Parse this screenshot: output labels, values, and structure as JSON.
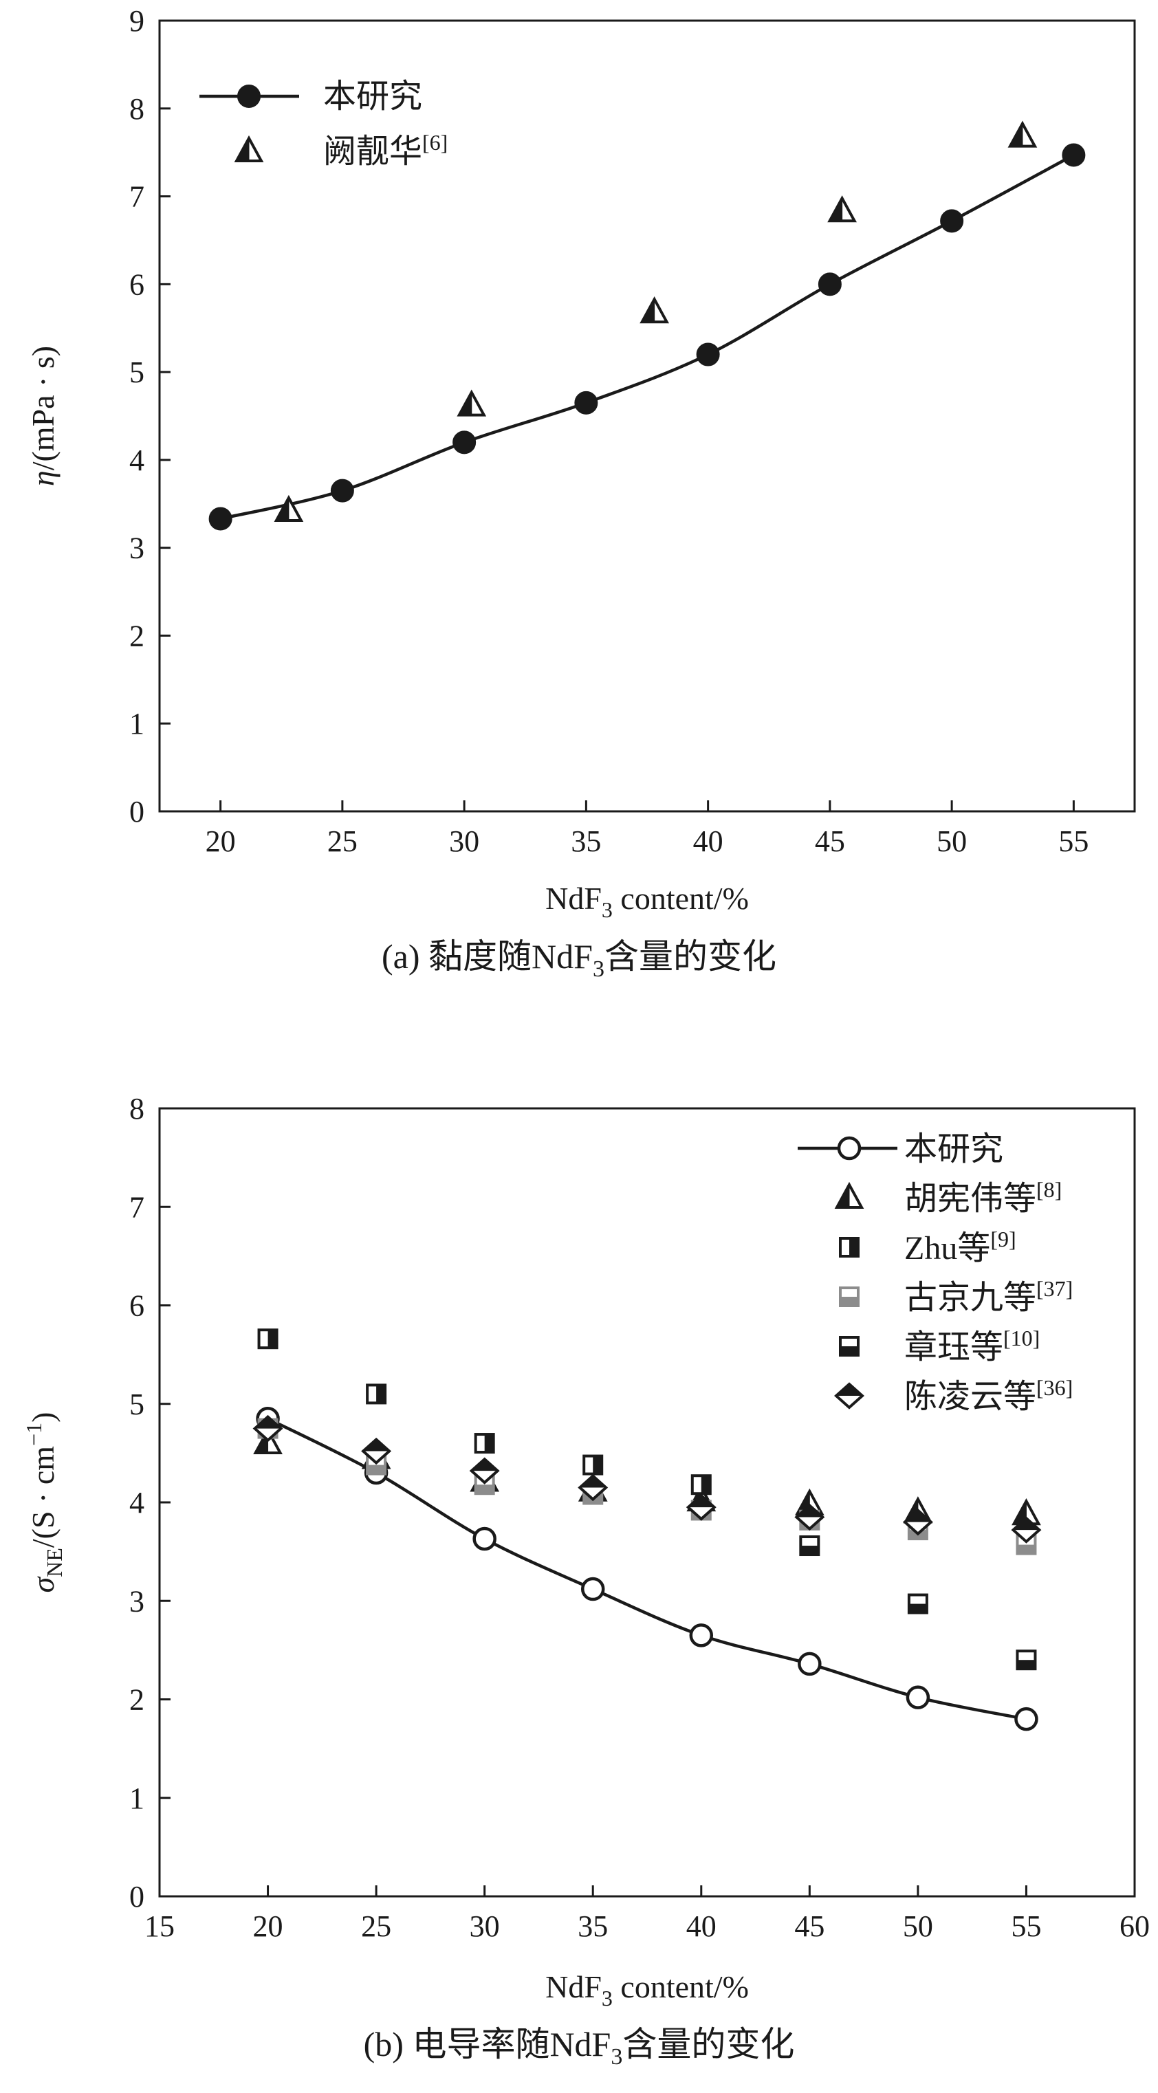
{
  "chart_data": [
    {
      "type": "line",
      "panel": "a",
      "caption": "(a) 黏度随NdF₃含量的变化",
      "xlabel": "NdF₃ content/%",
      "ylabel": "η/(mPa · s)",
      "xlim": [
        17.5,
        57.5
      ],
      "ylim": [
        0,
        9
      ],
      "xticks": [
        20,
        25,
        30,
        35,
        40,
        45,
        50,
        55
      ],
      "yticks": [
        0,
        1,
        2,
        3,
        4,
        5,
        6,
        7,
        8,
        9
      ],
      "legend_position": "top-left",
      "series": [
        {
          "name": "本研究",
          "marker": "filled-circle",
          "line": true,
          "color": "#1a1a1a",
          "points": [
            [
              20,
              3.33
            ],
            [
              25,
              3.65
            ],
            [
              30,
              4.2
            ],
            [
              35,
              4.65
            ],
            [
              40,
              5.2
            ],
            [
              45,
              6.0
            ],
            [
              50,
              6.72
            ],
            [
              55,
              7.47
            ]
          ]
        },
        {
          "name": "阙靓华[6]",
          "marker": "half-triangle",
          "line": false,
          "color": "#1a1a1a",
          "points": [
            [
              22.8,
              3.42
            ],
            [
              30.3,
              4.62
            ],
            [
              37.8,
              5.68
            ],
            [
              45.5,
              6.83
            ],
            [
              52.9,
              7.68
            ]
          ]
        }
      ]
    },
    {
      "type": "scatter",
      "panel": "b",
      "caption": "(b) 电导率随NdF₃含量的变化",
      "xlabel": "NdF₃ content/%",
      "ylabel": "σNE/(S · cm⁻¹)",
      "xlim": [
        15,
        60
      ],
      "ylim": [
        0,
        8
      ],
      "xticks": [
        15,
        20,
        25,
        30,
        35,
        40,
        45,
        50,
        55,
        60
      ],
      "yticks": [
        0,
        1,
        2,
        3,
        4,
        5,
        6,
        7,
        8
      ],
      "legend_position": "top-right",
      "series": [
        {
          "name": "本研究",
          "marker": "open-circle",
          "line": true,
          "color": "#1a1a1a",
          "points": [
            [
              20,
              4.85
            ],
            [
              25,
              4.3
            ],
            [
              30,
              3.63
            ],
            [
              35,
              3.12
            ],
            [
              40,
              2.65
            ],
            [
              45,
              2.36
            ],
            [
              50,
              2.02
            ],
            [
              55,
              1.8
            ]
          ]
        },
        {
          "name": "胡宪伟等[8]",
          "marker": "half-triangle",
          "line": false,
          "color": "#1a1a1a",
          "points": [
            [
              20,
              4.6
            ],
            [
              25,
              4.45
            ],
            [
              30,
              4.22
            ],
            [
              35,
              4.12
            ],
            [
              40,
              4.02
            ],
            [
              45,
              3.98
            ],
            [
              50,
              3.9
            ],
            [
              55,
              3.88
            ]
          ]
        },
        {
          "name": "Zhu等[9]",
          "marker": "half-square-vertical",
          "line": false,
          "color": "#1a1a1a",
          "points": [
            [
              20,
              5.66
            ],
            [
              25,
              5.1
            ],
            [
              30,
              4.6
            ],
            [
              35,
              4.38
            ],
            [
              40,
              4.18
            ]
          ]
        },
        {
          "name": "古京九等[37]",
          "marker": "half-square-horizontal",
          "line": false,
          "color": "#8c8c8c",
          "points": [
            [
              20,
              4.75
            ],
            [
              25,
              4.38
            ],
            [
              30,
              4.18
            ],
            [
              35,
              4.08
            ],
            [
              40,
              3.92
            ],
            [
              45,
              3.82
            ],
            [
              50,
              3.72
            ],
            [
              55,
              3.57
            ]
          ]
        },
        {
          "name": "章珏等[10]",
          "marker": "half-square-horizontal",
          "line": false,
          "color": "#1a1a1a",
          "points": [
            [
              45,
              3.56
            ],
            [
              50,
              2.97
            ],
            [
              55,
              2.4
            ]
          ]
        },
        {
          "name": "陈凌云等[36]",
          "marker": "half-diamond",
          "line": false,
          "color": "#1a1a1a",
          "points": [
            [
              20,
              4.75
            ],
            [
              25,
              4.52
            ],
            [
              30,
              4.32
            ],
            [
              35,
              4.15
            ],
            [
              40,
              3.95
            ],
            [
              45,
              3.85
            ],
            [
              50,
              3.8
            ],
            [
              55,
              3.72
            ]
          ]
        }
      ]
    }
  ]
}
